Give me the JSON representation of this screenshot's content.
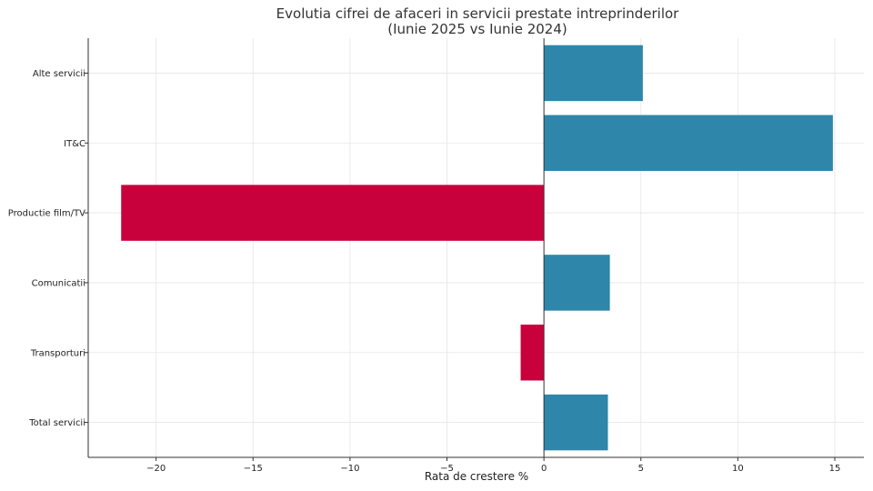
{
  "chart_data": {
    "type": "bar",
    "orientation": "horizontal",
    "title_line1": "Evolutia cifrei de afaceri in servicii prestate intreprinderilor",
    "title_line2": "(Iunie 2025 vs Iunie 2024)",
    "xlabel": "Rata de crestere %",
    "ylabel": "",
    "categories": [
      "Total servicii",
      "Transporturi",
      "Comunicatii",
      "Productie film/TV",
      "IT&C",
      "Alte servicii"
    ],
    "values": [
      3.3,
      -1.2,
      3.4,
      -21.8,
      14.9,
      5.1
    ],
    "xlim": [
      -23.5,
      16.5
    ],
    "xticks": [
      -20,
      -15,
      -10,
      -5,
      0,
      5,
      10,
      15
    ],
    "xtick_labels": [
      "−20",
      "−15",
      "−10",
      "−5",
      "0",
      "5",
      "10",
      "15"
    ],
    "grid": true,
    "colors": {
      "positive": "#2e86ab",
      "negative": "#c8003c"
    }
  }
}
